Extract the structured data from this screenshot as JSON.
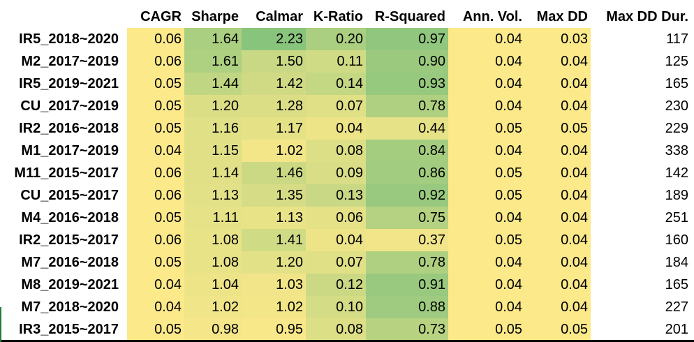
{
  "table": {
    "columns": [
      "CAGR",
      "Sharpe",
      "Calmar",
      "K-Ratio",
      "R-Squared",
      "Ann. Vol.",
      "Max DD",
      "Max DD Dur."
    ],
    "rows": [
      {
        "label": "IR5_2018~2020",
        "cells": [
          "0.06",
          "1.64",
          "2.23",
          "0.20",
          "0.97",
          "0.04",
          "0.03",
          "117"
        ]
      },
      {
        "label": "M2_2017~2019",
        "cells": [
          "0.06",
          "1.61",
          "1.50",
          "0.11",
          "0.90",
          "0.04",
          "0.04",
          "125"
        ]
      },
      {
        "label": "IR5_2019~2021",
        "cells": [
          "0.05",
          "1.44",
          "1.42",
          "0.14",
          "0.93",
          "0.04",
          "0.04",
          "165"
        ]
      },
      {
        "label": "CU_2017~2019",
        "cells": [
          "0.05",
          "1.20",
          "1.28",
          "0.07",
          "0.78",
          "0.04",
          "0.04",
          "230"
        ]
      },
      {
        "label": "IR2_2016~2018",
        "cells": [
          "0.05",
          "1.16",
          "1.17",
          "0.04",
          "0.44",
          "0.05",
          "0.05",
          "229"
        ]
      },
      {
        "label": "M1_2017~2019",
        "cells": [
          "0.04",
          "1.15",
          "1.02",
          "0.08",
          "0.84",
          "0.04",
          "0.04",
          "338"
        ]
      },
      {
        "label": "M11_2015~2017",
        "cells": [
          "0.06",
          "1.14",
          "1.46",
          "0.09",
          "0.86",
          "0.05",
          "0.04",
          "142"
        ]
      },
      {
        "label": "CU_2015~2017",
        "cells": [
          "0.06",
          "1.13",
          "1.35",
          "0.13",
          "0.92",
          "0.05",
          "0.04",
          "189"
        ]
      },
      {
        "label": "M4_2016~2018",
        "cells": [
          "0.05",
          "1.11",
          "1.13",
          "0.06",
          "0.75",
          "0.04",
          "0.04",
          "251"
        ]
      },
      {
        "label": "IR2_2015~2017",
        "cells": [
          "0.06",
          "1.08",
          "1.41",
          "0.04",
          "0.37",
          "0.05",
          "0.04",
          "160"
        ]
      },
      {
        "label": "M7_2016~2018",
        "cells": [
          "0.05",
          "1.08",
          "1.20",
          "0.07",
          "0.78",
          "0.04",
          "0.04",
          "184"
        ]
      },
      {
        "label": "M8_2019~2021",
        "cells": [
          "0.04",
          "1.04",
          "1.03",
          "0.12",
          "0.91",
          "0.04",
          "0.04",
          "165"
        ]
      },
      {
        "label": "M7_2018~2020",
        "cells": [
          "0.04",
          "1.02",
          "1.02",
          "0.10",
          "0.88",
          "0.04",
          "0.04",
          "227"
        ]
      },
      {
        "label": "IR3_2015~2017",
        "cells": [
          "0.05",
          "0.98",
          "0.95",
          "0.08",
          "0.73",
          "0.05",
          "0.05",
          "201"
        ]
      }
    ]
  },
  "colors": {
    "scale_low": "#fde98a",
    "scale_high": "#6dbb79",
    "neutral_yellow": "#fbe98a",
    "text": "#000000",
    "rule": "#000000"
  }
}
